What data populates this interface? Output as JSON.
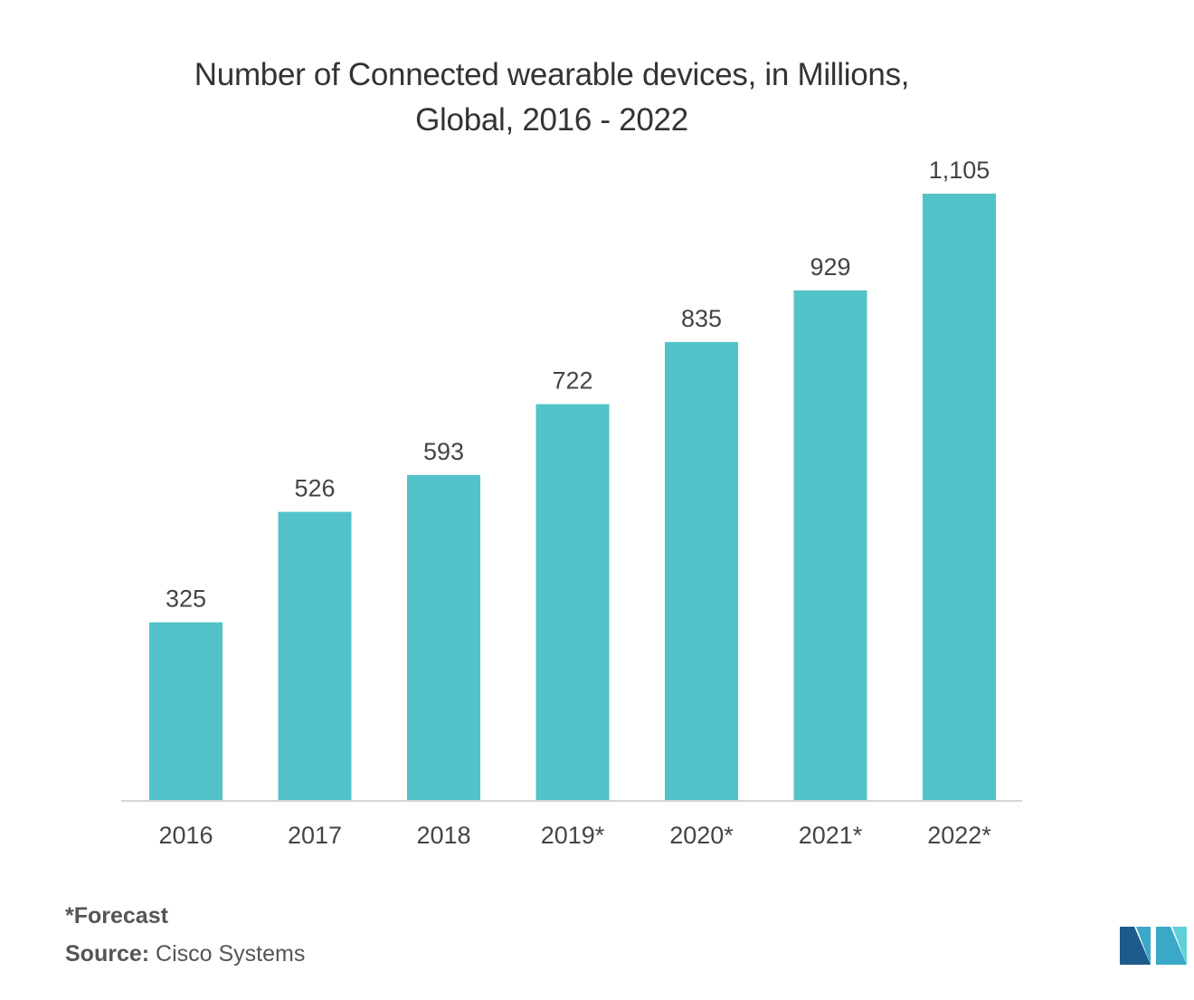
{
  "chart_data": {
    "type": "bar",
    "title": "Number of Connected wearable devices, in Millions, Global, 2016 - 2022",
    "title_lines": [
      "Number of Connected wearable devices, in Millions,",
      "Global, 2016 - 2022"
    ],
    "categories": [
      "2016",
      "2017",
      "2018",
      "2019*",
      "2020*",
      "2021*",
      "2022*"
    ],
    "values": [
      325,
      526,
      593,
      722,
      835,
      929,
      1105
    ],
    "value_labels": [
      "325",
      "526",
      "593",
      "722",
      "835",
      "929",
      "1,105"
    ],
    "xlabel": "",
    "ylabel": "",
    "ylim": [
      0,
      1105
    ],
    "grid": false,
    "legend": "none",
    "bar_color": "#52C3C9",
    "axis_color": "#d5d5d5",
    "label_color": "#444444"
  },
  "footnotes": {
    "forecast": "*Forecast",
    "source_label": "Source:",
    "source_value": "Cisco Systems"
  },
  "logo": {
    "icon": "mordor-intelligence-logo-icon",
    "colors": [
      "#1f5a8c",
      "#3aa8c9",
      "#5fd0d8"
    ]
  }
}
